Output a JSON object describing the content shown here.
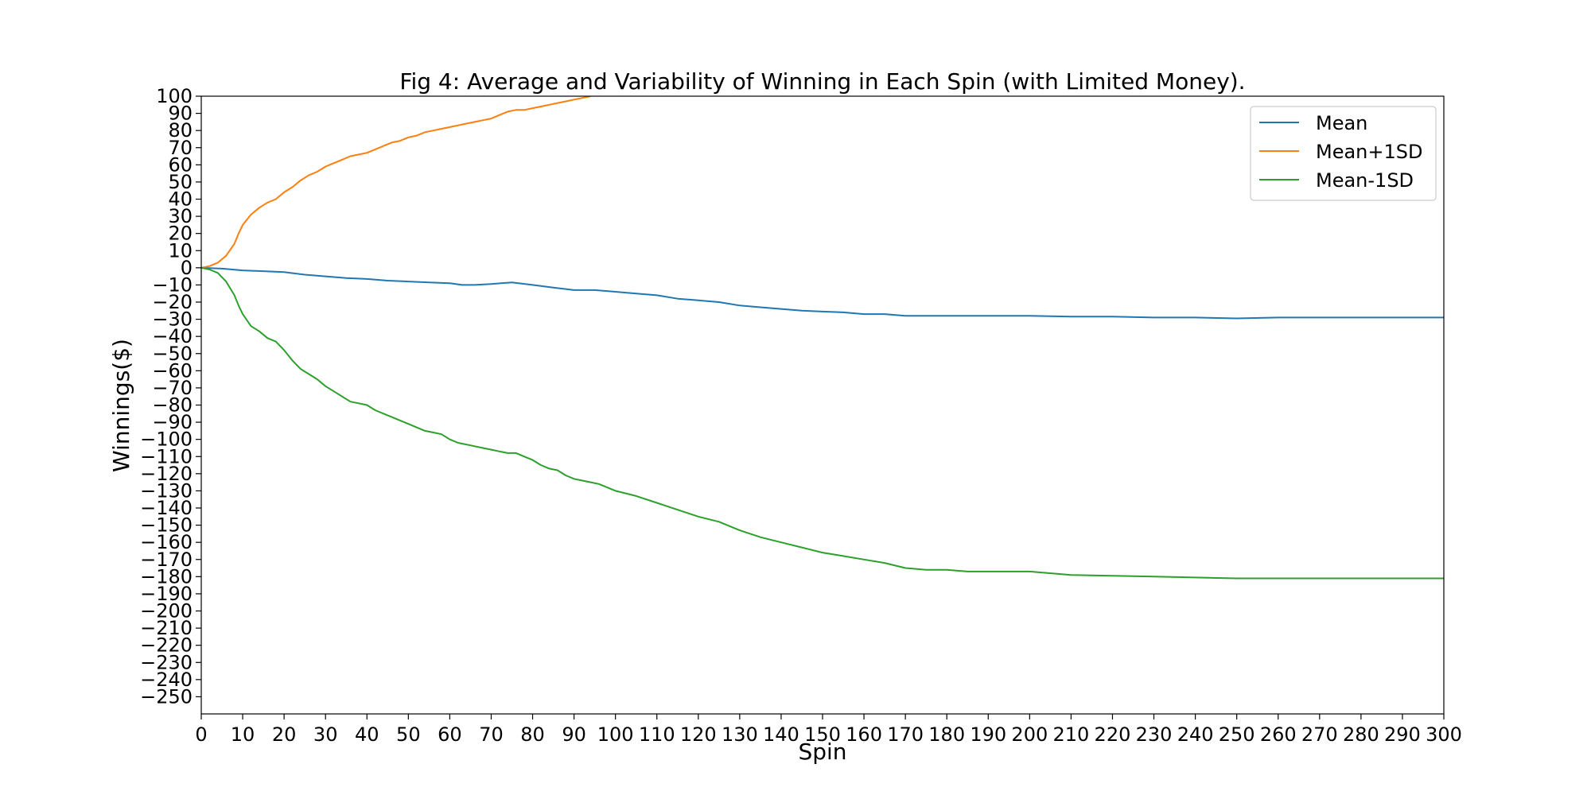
{
  "chart_data": {
    "type": "line",
    "title": "Fig 4: Average and Variability of Winning in Each Spin (with Limited Money).",
    "xlabel": "Spin",
    "ylabel": "Winnings($)",
    "xlim": [
      0,
      300
    ],
    "ylim": [
      -260,
      100
    ],
    "xticks": [
      0,
      10,
      20,
      30,
      40,
      50,
      60,
      70,
      80,
      90,
      100,
      110,
      120,
      130,
      140,
      150,
      160,
      170,
      180,
      190,
      200,
      210,
      220,
      230,
      240,
      250,
      260,
      270,
      280,
      290,
      300
    ],
    "yticks": [
      100,
      90,
      80,
      70,
      60,
      50,
      40,
      30,
      20,
      10,
      0,
      -10,
      -20,
      -30,
      -40,
      -50,
      -60,
      -70,
      -80,
      -90,
      -100,
      -110,
      -120,
      -130,
      -140,
      -150,
      -160,
      -170,
      -180,
      -190,
      -200,
      -210,
      -220,
      -230,
      -240,
      -250
    ],
    "grid": false,
    "legend_position": "top-right",
    "series": [
      {
        "name": "Mean",
        "color": "#1f77b4",
        "points": [
          [
            0,
            0
          ],
          [
            5,
            -0.5
          ],
          [
            10,
            -1.5
          ],
          [
            15,
            -2
          ],
          [
            20,
            -2.5
          ],
          [
            25,
            -4
          ],
          [
            30,
            -5
          ],
          [
            35,
            -6
          ],
          [
            40,
            -6.5
          ],
          [
            45,
            -7.5
          ],
          [
            50,
            -8
          ],
          [
            55,
            -8.5
          ],
          [
            60,
            -9
          ],
          [
            63,
            -10
          ],
          [
            66,
            -10
          ],
          [
            70,
            -9.5
          ],
          [
            75,
            -8.5
          ],
          [
            80,
            -10
          ],
          [
            85,
            -11.5
          ],
          [
            90,
            -13
          ],
          [
            95,
            -13
          ],
          [
            100,
            -14
          ],
          [
            105,
            -15
          ],
          [
            110,
            -16
          ],
          [
            115,
            -18
          ],
          [
            120,
            -19
          ],
          [
            125,
            -20
          ],
          [
            130,
            -22
          ],
          [
            135,
            -23
          ],
          [
            140,
            -24
          ],
          [
            145,
            -25
          ],
          [
            150,
            -25.5
          ],
          [
            155,
            -26
          ],
          [
            160,
            -27
          ],
          [
            165,
            -27
          ],
          [
            170,
            -28
          ],
          [
            180,
            -28
          ],
          [
            190,
            -28
          ],
          [
            200,
            -28
          ],
          [
            210,
            -28.5
          ],
          [
            220,
            -28.5
          ],
          [
            230,
            -29
          ],
          [
            240,
            -29
          ],
          [
            250,
            -29.5
          ],
          [
            260,
            -29
          ],
          [
            270,
            -29
          ],
          [
            280,
            -29
          ],
          [
            290,
            -29
          ],
          [
            300,
            -29
          ]
        ]
      },
      {
        "name": "Mean+1SD",
        "color": "#ff7f0e",
        "points": [
          [
            0,
            0
          ],
          [
            2,
            1
          ],
          [
            4,
            3
          ],
          [
            6,
            7
          ],
          [
            8,
            14
          ],
          [
            9,
            20
          ],
          [
            10,
            25
          ],
          [
            12,
            31
          ],
          [
            14,
            35
          ],
          [
            16,
            38
          ],
          [
            18,
            40
          ],
          [
            20,
            44
          ],
          [
            22,
            47
          ],
          [
            24,
            51
          ],
          [
            26,
            54
          ],
          [
            28,
            56
          ],
          [
            30,
            59
          ],
          [
            32,
            61
          ],
          [
            34,
            63
          ],
          [
            36,
            65
          ],
          [
            38,
            66
          ],
          [
            40,
            67
          ],
          [
            42,
            69
          ],
          [
            44,
            71
          ],
          [
            46,
            73
          ],
          [
            48,
            74
          ],
          [
            50,
            76
          ],
          [
            52,
            77
          ],
          [
            54,
            79
          ],
          [
            56,
            80
          ],
          [
            58,
            81
          ],
          [
            60,
            82
          ],
          [
            62,
            83
          ],
          [
            64,
            84
          ],
          [
            66,
            85
          ],
          [
            68,
            86
          ],
          [
            70,
            87
          ],
          [
            72,
            89
          ],
          [
            74,
            91
          ],
          [
            76,
            92
          ],
          [
            78,
            92
          ],
          [
            80,
            93
          ],
          [
            82,
            94
          ],
          [
            84,
            95
          ],
          [
            86,
            96
          ],
          [
            88,
            97
          ],
          [
            90,
            98
          ],
          [
            92,
            99
          ],
          [
            94,
            100
          ]
        ]
      },
      {
        "name": "Mean-1SD",
        "color": "#2ca02c",
        "points": [
          [
            0,
            0
          ],
          [
            2,
            -1
          ],
          [
            4,
            -3
          ],
          [
            6,
            -8
          ],
          [
            8,
            -16
          ],
          [
            9,
            -22
          ],
          [
            10,
            -27
          ],
          [
            12,
            -34
          ],
          [
            14,
            -37
          ],
          [
            16,
            -41
          ],
          [
            18,
            -43
          ],
          [
            20,
            -48
          ],
          [
            22,
            -54
          ],
          [
            24,
            -59
          ],
          [
            26,
            -62
          ],
          [
            28,
            -65
          ],
          [
            30,
            -69
          ],
          [
            32,
            -72
          ],
          [
            34,
            -75
          ],
          [
            36,
            -78
          ],
          [
            38,
            -79
          ],
          [
            40,
            -80
          ],
          [
            42,
            -83
          ],
          [
            44,
            -85
          ],
          [
            46,
            -87
          ],
          [
            48,
            -89
          ],
          [
            50,
            -91
          ],
          [
            52,
            -93
          ],
          [
            54,
            -95
          ],
          [
            56,
            -96
          ],
          [
            58,
            -97
          ],
          [
            60,
            -100
          ],
          [
            62,
            -102
          ],
          [
            64,
            -103
          ],
          [
            66,
            -104
          ],
          [
            68,
            -105
          ],
          [
            70,
            -106
          ],
          [
            72,
            -107
          ],
          [
            74,
            -108
          ],
          [
            76,
            -108
          ],
          [
            78,
            -110
          ],
          [
            80,
            -112
          ],
          [
            82,
            -115
          ],
          [
            84,
            -117
          ],
          [
            86,
            -118
          ],
          [
            88,
            -121
          ],
          [
            90,
            -123
          ],
          [
            92,
            -124
          ],
          [
            94,
            -125
          ],
          [
            96,
            -126
          ],
          [
            98,
            -128
          ],
          [
            100,
            -130
          ],
          [
            105,
            -133
          ],
          [
            110,
            -137
          ],
          [
            115,
            -141
          ],
          [
            120,
            -145
          ],
          [
            125,
            -148
          ],
          [
            130,
            -153
          ],
          [
            135,
            -157
          ],
          [
            140,
            -160
          ],
          [
            145,
            -163
          ],
          [
            150,
            -166
          ],
          [
            155,
            -168
          ],
          [
            160,
            -170
          ],
          [
            165,
            -172
          ],
          [
            170,
            -175
          ],
          [
            175,
            -176
          ],
          [
            180,
            -176
          ],
          [
            185,
            -177
          ],
          [
            190,
            -177
          ],
          [
            195,
            -177
          ],
          [
            200,
            -177
          ],
          [
            210,
            -179
          ],
          [
            220,
            -179.5
          ],
          [
            230,
            -180
          ],
          [
            240,
            -180.5
          ],
          [
            250,
            -181
          ],
          [
            260,
            -181
          ],
          [
            270,
            -181
          ],
          [
            280,
            -181
          ],
          [
            290,
            -181
          ],
          [
            300,
            -181
          ]
        ]
      }
    ]
  }
}
